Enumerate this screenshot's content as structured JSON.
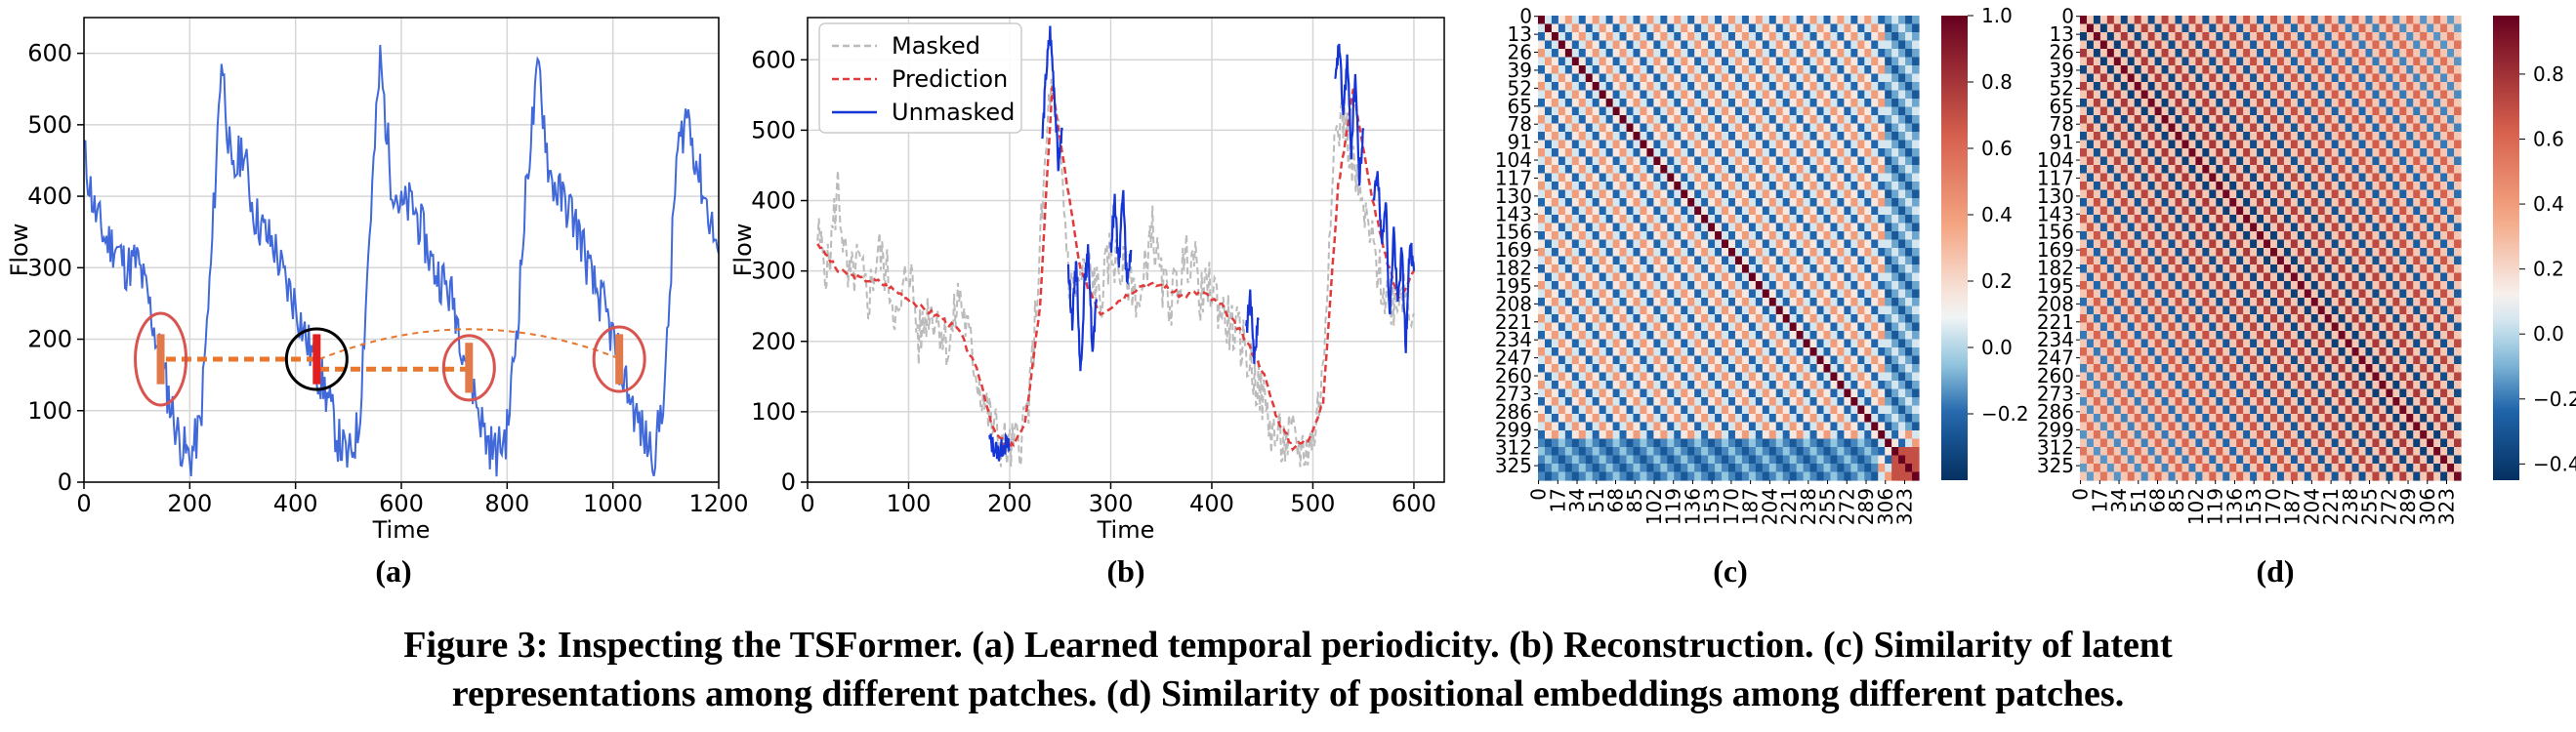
{
  "figure": {
    "caption_line1": "Figure 3: Inspecting the TSFormer. (a) Learned temporal periodicity. (b) Reconstruction. (c) Similarity of latent",
    "caption_line2": "representations among different patches. (d) Similarity of positional embeddings among different patches."
  },
  "colors": {
    "series_blue": "#4169d9",
    "unmasked_blue": "#1535d6",
    "masked_gray": "#bbbbbb",
    "prediction_red": "#e23b3b",
    "periodicity_orange": "#e8762d",
    "circle_red": "#d9534f",
    "heat_pos": "#67001f",
    "heat_neg": "#053061"
  },
  "chart_data": [
    {
      "id": "a",
      "panel_label": "(a)",
      "type": "line",
      "title": "",
      "xlabel": "Time",
      "ylabel": "Flow",
      "xlim": [
        0,
        1200
      ],
      "ylim": [
        0,
        650
      ],
      "xticks": [
        0,
        200,
        400,
        600,
        800,
        1000,
        1200
      ],
      "yticks": [
        0,
        100,
        200,
        300,
        400,
        500,
        600
      ],
      "grid": true,
      "series": [
        {
          "name": "Flow",
          "x": [
            0,
            20,
            40,
            60,
            80,
            100,
            120,
            140,
            160,
            180,
            200,
            220,
            240,
            260,
            280,
            300,
            320,
            340,
            360,
            380,
            400,
            420,
            440,
            460,
            480,
            500,
            520,
            540,
            560,
            580,
            600,
            620,
            640,
            660,
            680,
            700,
            720,
            740,
            760,
            780,
            800,
            820,
            840,
            860,
            880,
            900,
            920,
            940,
            960,
            980,
            1000,
            1020,
            1040,
            1060,
            1080,
            1100,
            1120,
            1140,
            1160,
            1180,
            1200
          ],
          "y": [
            460,
            380,
            340,
            330,
            300,
            310,
            260,
            190,
            120,
            60,
            30,
            80,
            300,
            600,
            420,
            470,
            380,
            350,
            330,
            280,
            250,
            200,
            160,
            120,
            60,
            30,
            80,
            350,
            590,
            430,
            380,
            390,
            350,
            300,
            280,
            250,
            180,
            120,
            60,
            40,
            70,
            230,
            450,
            580,
            430,
            400,
            380,
            340,
            280,
            250,
            200,
            150,
            100,
            60,
            40,
            150,
            450,
            520,
            440,
            380,
            320
          ]
        }
      ],
      "periodicity_markers": [
        {
          "x_start": 155,
          "x_end": 445,
          "y": 172,
          "style": "thick-dashed"
        },
        {
          "x_start": 445,
          "x_end": 730,
          "y": 158,
          "style": "thick-dashed"
        },
        {
          "x_start": 445,
          "x_end": 1015,
          "y": 215,
          "style": "thin-dashed-arc"
        }
      ],
      "highlight_circles_x": [
        145,
        440,
        728,
        1012
      ],
      "highlight_circles_y": [
        172,
        172,
        160,
        172
      ]
    },
    {
      "id": "b",
      "panel_label": "(b)",
      "type": "line",
      "title": "",
      "xlabel": "Time",
      "ylabel": "Flow",
      "xlim": [
        0,
        630
      ],
      "ylim": [
        0,
        660
      ],
      "xticks": [
        0,
        100,
        200,
        300,
        400,
        500,
        600
      ],
      "yticks": [
        0,
        100,
        200,
        300,
        400,
        500,
        600
      ],
      "grid": true,
      "legend": {
        "position": "top-left",
        "entries": [
          "Masked",
          "Prediction",
          "Unmasked"
        ]
      },
      "series": [
        {
          "name": "Masked",
          "x": [
            10,
            20,
            30,
            40,
            50,
            60,
            70,
            80,
            90,
            100,
            110,
            120,
            130,
            140,
            150,
            160,
            170,
            180,
            190,
            200,
            210,
            220,
            230,
            240,
            250,
            260,
            270,
            280,
            290,
            300,
            310,
            320,
            330,
            340,
            350,
            360,
            370,
            380,
            390,
            400,
            410,
            420,
            430,
            440,
            450,
            460,
            470,
            480,
            490,
            500,
            510,
            520,
            530,
            540,
            550,
            560,
            570,
            580,
            590,
            600
          ],
          "y": [
            350,
            300,
            420,
            280,
            310,
            260,
            330,
            290,
            220,
            320,
            200,
            250,
            230,
            190,
            270,
            200,
            140,
            90,
            60,
            45,
            60,
            120,
            330,
            560,
            470,
            270,
            290,
            300,
            260,
            330,
            300,
            290,
            250,
            370,
            280,
            260,
            300,
            330,
            260,
            280,
            240,
            220,
            200,
            160,
            120,
            70,
            55,
            60,
            45,
            60,
            150,
            480,
            520,
            450,
            380,
            330,
            270,
            260,
            280,
            240
          ]
        },
        {
          "name": "Prediction",
          "x": [
            10,
            30,
            50,
            70,
            90,
            110,
            130,
            150,
            170,
            185,
            200,
            215,
            230,
            242,
            255,
            270,
            290,
            310,
            330,
            350,
            370,
            390,
            410,
            430,
            450,
            465,
            480,
            495,
            510,
            525,
            540,
            555,
            570,
            585,
            600
          ],
          "y": [
            340,
            300,
            290,
            285,
            270,
            250,
            235,
            215,
            150,
            70,
            48,
            80,
            250,
            560,
            440,
            300,
            240,
            260,
            280,
            280,
            265,
            270,
            250,
            210,
            160,
            90,
            50,
            60,
            110,
            420,
            560,
            430,
            330,
            260,
            300
          ]
        },
        {
          "name": "Unmasked",
          "segments": [
            {
              "x": [
                180,
                185,
                190,
                195,
                200
              ],
              "y": [
                60,
                48,
                42,
                55,
                48
              ]
            },
            {
              "x": [
                232,
                236,
                240,
                244,
                248,
                252
              ],
              "y": [
                480,
                580,
                640,
                560,
                450,
                500
              ]
            },
            {
              "x": [
                258,
                262,
                266,
                270,
                274,
                278,
                282,
                286
              ],
              "y": [
                300,
                230,
                320,
                150,
                280,
                330,
                180,
                260
              ]
            },
            {
              "x": [
                300,
                304,
                308,
                312,
                316,
                320
              ],
              "y": [
                330,
                400,
                300,
                420,
                280,
                330
              ]
            },
            {
              "x": [
                434,
                438,
                442,
                446
              ],
              "y": [
                210,
                270,
                180,
                230
              ]
            },
            {
              "x": [
                522,
                526,
                530,
                534,
                538,
                542,
                546,
                550
              ],
              "y": [
                560,
                625,
                520,
                600,
                470,
                580,
                430,
                500
              ]
            },
            {
              "x": [
                560,
                564,
                568,
                572,
                576,
                580,
                584,
                588,
                592,
                596,
                600
              ],
              "y": [
                390,
                450,
                330,
                410,
                230,
                360,
                250,
                330,
                190,
                340,
                300
              ]
            }
          ]
        }
      ]
    },
    {
      "id": "c",
      "panel_label": "(c)",
      "type": "heatmap",
      "title": "",
      "size": 336,
      "row_tick_labels": [
        "0",
        "13",
        "26",
        "39",
        "52",
        "65",
        "78",
        "91",
        "104",
        "117",
        "130",
        "143",
        "156",
        "169",
        "182",
        "195",
        "208",
        "221",
        "234",
        "247",
        "260",
        "273",
        "286",
        "299",
        "312",
        "325"
      ],
      "col_tick_labels": [
        "0",
        "17",
        "34",
        "51",
        "68",
        "85",
        "102",
        "119",
        "136",
        "153",
        "170",
        "187",
        "204",
        "221",
        "238",
        "255",
        "272",
        "289",
        "306",
        "323"
      ],
      "colorbar": {
        "min": -0.4,
        "max": 1.0,
        "ticks": [
          1.0,
          0.8,
          0.6,
          0.4,
          0.2,
          0.0,
          -0.2
        ],
        "tick_labels": [
          "1.0",
          "0.8",
          "0.6",
          "0.4",
          "0.2",
          "0.0",
          "−0.2"
        ]
      },
      "period": 24,
      "pattern": "diagonal value 1.0, periodic positive bands every ~24 patches, block-structured negative regions near bottom-left"
    },
    {
      "id": "d",
      "panel_label": "(d)",
      "type": "heatmap",
      "title": "",
      "size": 336,
      "row_tick_labels": [
        "0",
        "13",
        "26",
        "39",
        "52",
        "65",
        "78",
        "91",
        "104",
        "117",
        "130",
        "143",
        "156",
        "169",
        "182",
        "195",
        "208",
        "221",
        "234",
        "247",
        "260",
        "273",
        "286",
        "299",
        "312",
        "325"
      ],
      "col_tick_labels": [
        "0",
        "17",
        "34",
        "51",
        "68",
        "85",
        "102",
        "119",
        "136",
        "153",
        "170",
        "187",
        "204",
        "221",
        "238",
        "255",
        "272",
        "289",
        "306",
        "323"
      ],
      "colorbar": {
        "min": -0.45,
        "max": 0.98,
        "ticks": [
          0.8,
          0.6,
          0.4,
          0.2,
          0.0,
          -0.2,
          -0.4
        ],
        "tick_labels": [
          "0.8",
          "0.6",
          "0.4",
          "0.2",
          "0.0",
          "−0.2",
          "−0.4"
        ]
      },
      "period": 24,
      "pattern": "strong main diagonal, regular diagonal stripes with period ~24 alternating positive and negative"
    }
  ]
}
